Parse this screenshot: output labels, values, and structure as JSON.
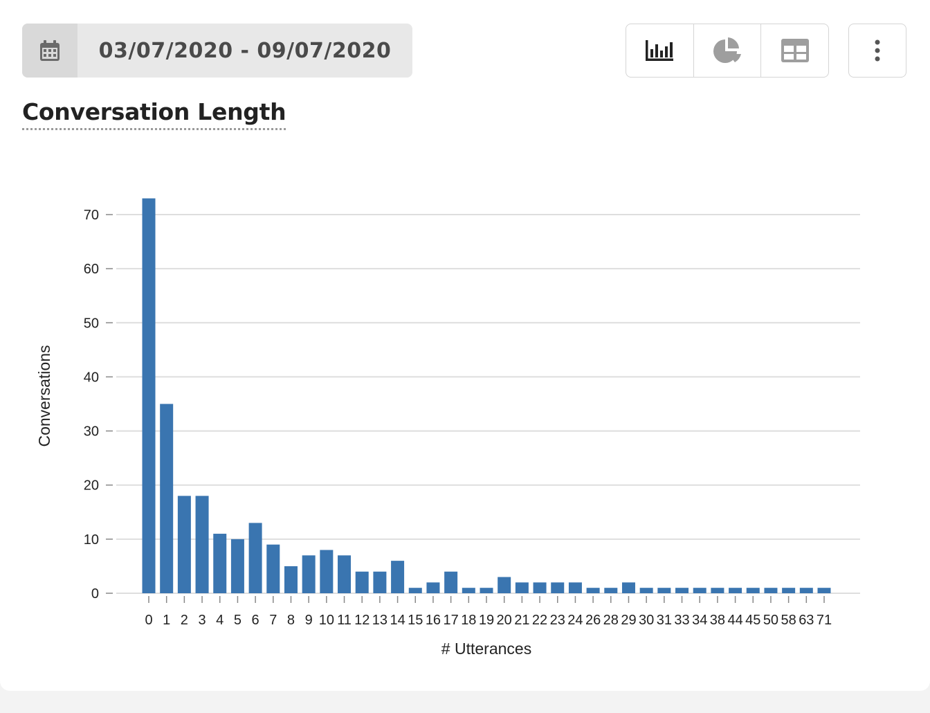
{
  "toolbar": {
    "date_range": "03/07/2020 - 09/07/2020",
    "views": [
      "bar-chart",
      "pie-chart",
      "table"
    ],
    "active_view": "bar-chart"
  },
  "colors": {
    "bar": "#3a75b0",
    "grid": "#dedede",
    "active_icon": "#222222",
    "inactive_icon": "#9e9e9e"
  },
  "chart_data": {
    "type": "bar",
    "title": "Conversation Length",
    "xlabel": "# Utterances",
    "ylabel": "Conversations",
    "ylim": [
      0,
      70
    ],
    "yticks": [
      0,
      10,
      20,
      30,
      40,
      50,
      60,
      70
    ],
    "grid": true,
    "categories": [
      "0",
      "1",
      "2",
      "3",
      "4",
      "5",
      "6",
      "7",
      "8",
      "9",
      "10",
      "11",
      "12",
      "13",
      "14",
      "15",
      "16",
      "17",
      "18",
      "19",
      "20",
      "21",
      "22",
      "23",
      "24",
      "26",
      "28",
      "29",
      "30",
      "31",
      "33",
      "34",
      "38",
      "44",
      "45",
      "50",
      "58",
      "63",
      "71"
    ],
    "values": [
      73,
      35,
      18,
      18,
      11,
      10,
      13,
      9,
      5,
      7,
      8,
      7,
      4,
      4,
      6,
      1,
      2,
      4,
      1,
      1,
      3,
      2,
      2,
      2,
      2,
      1,
      1,
      2,
      1,
      1,
      1,
      1,
      1,
      1,
      1,
      1,
      1,
      1,
      1
    ]
  }
}
